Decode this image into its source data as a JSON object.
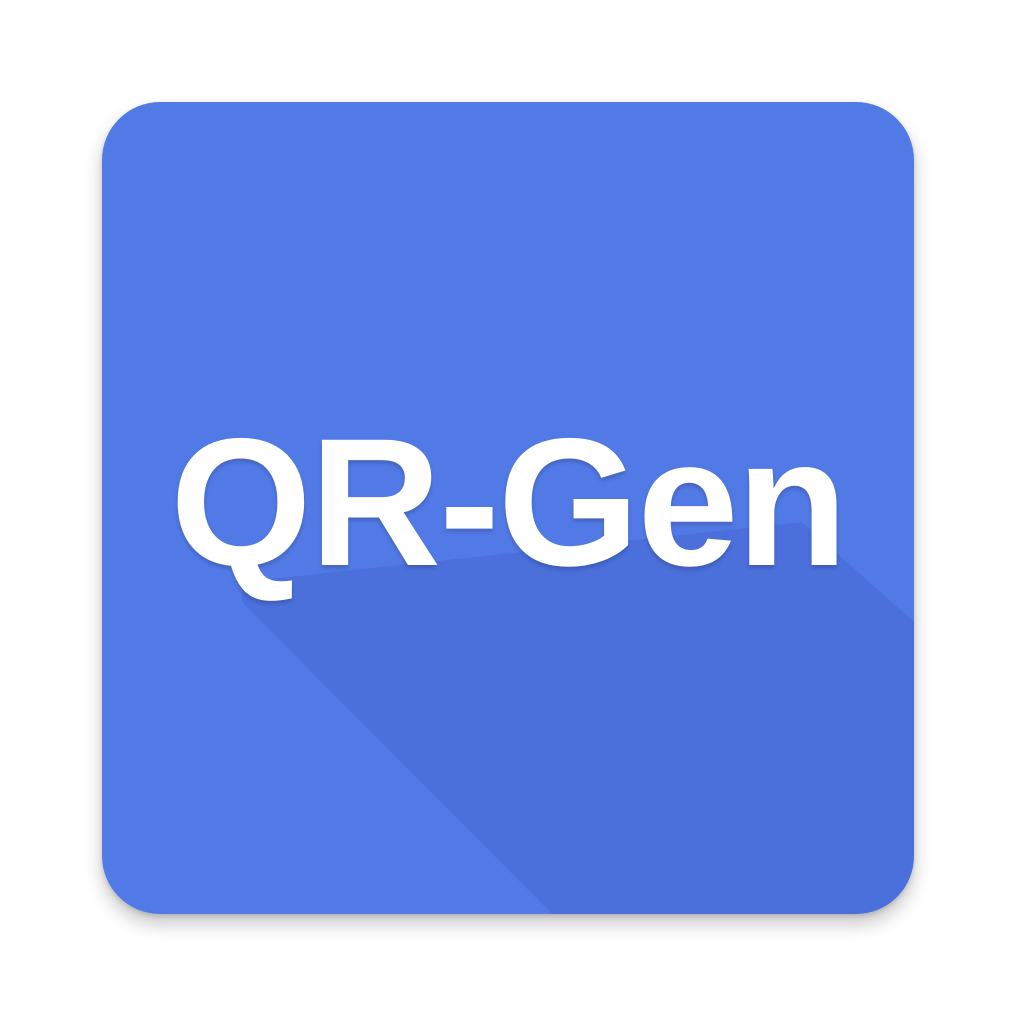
{
  "icon": {
    "label": "QR-Gen",
    "background_color": "#527AE6",
    "long_shadow_color": "#3F5FC8",
    "text_color": "#FFFFFF"
  }
}
